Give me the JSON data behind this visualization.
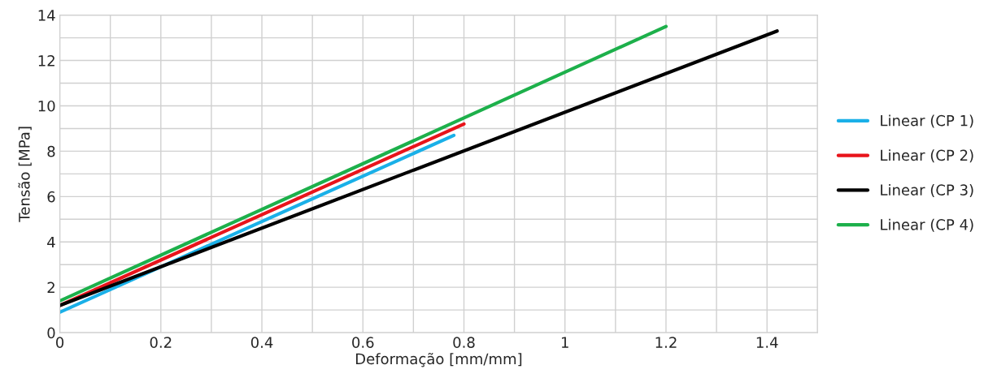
{
  "chart_data": {
    "type": "line",
    "xlabel": "Deformação [mm/mm]",
    "ylabel": "Tensão [MPa]",
    "xlim": [
      0,
      1.5
    ],
    "ylim": [
      0,
      14
    ],
    "xticks": [
      0,
      {
        "value": 0.1,
        "label": null
      },
      0.2,
      {
        "value": 0.3,
        "label": null
      },
      0.4,
      {
        "value": 0.5,
        "label": null
      },
      0.6,
      {
        "value": 0.7,
        "label": null
      },
      0.8,
      {
        "value": 0.9,
        "label": null
      },
      1,
      {
        "value": 1.1,
        "label": null
      },
      1.2,
      {
        "value": 1.3,
        "label": null
      },
      1.4,
      {
        "value": 1.5,
        "label": null
      }
    ],
    "yticks": [
      0,
      {
        "value": 1,
        "label": null
      },
      2,
      {
        "value": 3,
        "label": null
      },
      4,
      {
        "value": 5,
        "label": null
      },
      6,
      {
        "value": 7,
        "label": null
      },
      8,
      {
        "value": 9,
        "label": null
      },
      10,
      {
        "value": 11,
        "label": null
      },
      12,
      {
        "value": 13,
        "label": null
      },
      14
    ],
    "grid": true,
    "legend": "right",
    "marker": "none",
    "line_style": "solid",
    "series": [
      {
        "name": "Linear (CP 1)",
        "color": "#1ab0e8",
        "x": [
          0,
          0.78
        ],
        "values": [
          0.9,
          8.7
        ]
      },
      {
        "name": "Linear (CP 2)",
        "color": "#e8141b",
        "x": [
          0,
          0.8
        ],
        "values": [
          1.2,
          9.2
        ]
      },
      {
        "name": "Linear (CP 3)",
        "color": "#000000",
        "x": [
          0,
          1.42
        ],
        "values": [
          1.2,
          13.3
        ]
      },
      {
        "name": "Linear (CP 4)",
        "color": "#1db04b",
        "x": [
          0,
          1.2
        ],
        "values": [
          1.4,
          13.5
        ]
      }
    ]
  }
}
